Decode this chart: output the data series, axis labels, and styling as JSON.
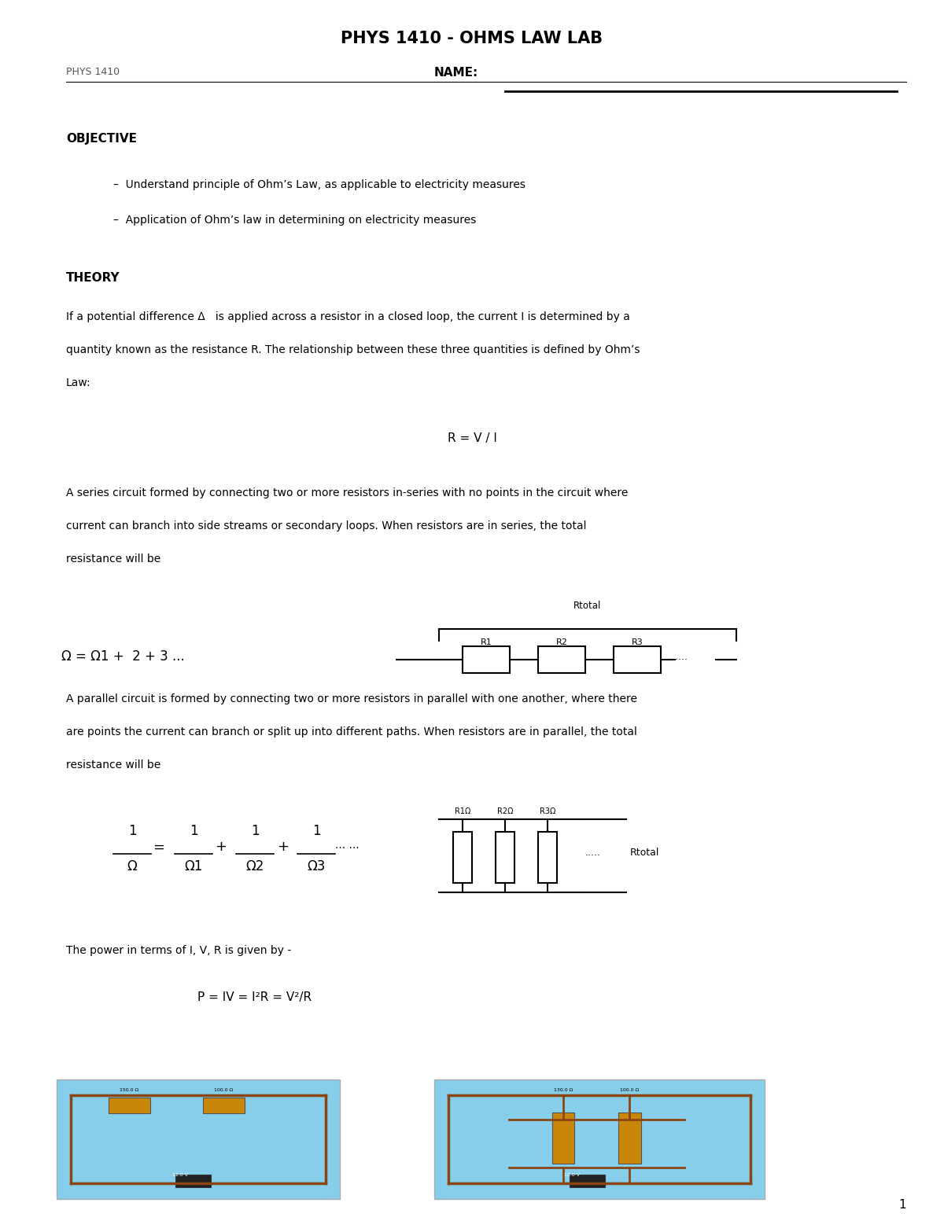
{
  "title": "PHYS 1410 - OHMS LAW LAB",
  "header_left": "PHYS 1410",
  "name_label": "NAME:",
  "bg_color": "#ffffff",
  "objective_header": "OBJECTIVE",
  "objective_bullets": [
    "Understand principle of Ohm’s Law, as applicable to electricity measures",
    "Application of Ohm’s law in determining on electricity measures"
  ],
  "theory_header": "THEORY",
  "theory_p1_lines": [
    "If a potential difference Δ   is applied across a resistor in a closed loop, the current I is determined by a",
    "quantity known as the resistance R. The relationship between these three quantities is defined by Ohm’s",
    "Law:"
  ],
  "ohms_law_eq": "R = V / I",
  "series_text_lines": [
    "A series circuit formed by connecting two or more resistors in-series with no points in the circuit where",
    "current can branch into side streams or secondary loops. When resistors are in series, the total",
    "resistance will be"
  ],
  "series_resistors": [
    "R1",
    "R2",
    "R3"
  ],
  "parallel_text_lines": [
    "A parallel circuit is formed by connecting two or more resistors in parallel with one another, where there",
    "are points the current can branch or split up into different paths. When resistors are in parallel, the total",
    "resistance will be"
  ],
  "parallel_resistors": [
    "R1Ω",
    "R2Ω",
    "R3Ω"
  ],
  "power_intro": "The power in terms of I, V, R is given by -",
  "power_eq": "P = IV = I²R = V²/R",
  "page_number": "1",
  "fig_width": 12.0,
  "fig_height": 15.53
}
